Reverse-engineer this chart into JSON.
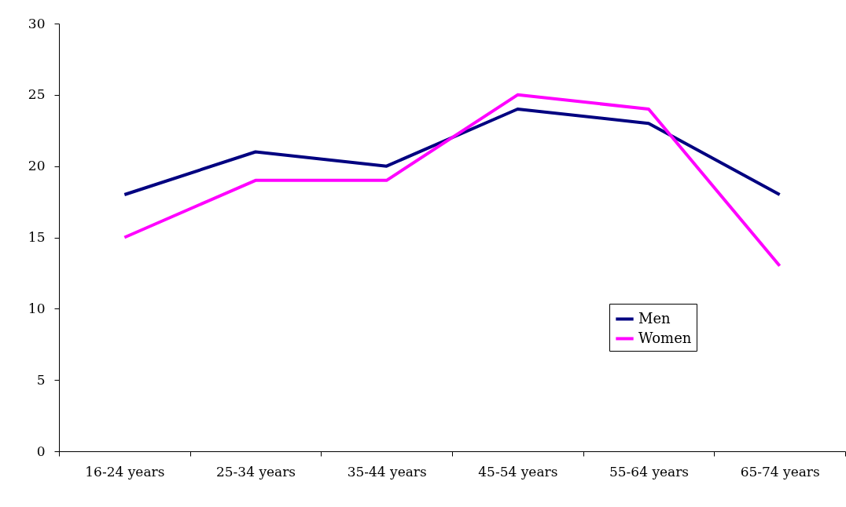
{
  "chart_data": {
    "type": "line",
    "categories": [
      "16-24 years",
      "25-34 years",
      "35-44 years",
      "45-54 years",
      "55-64 years",
      "65-74 years"
    ],
    "series": [
      {
        "name": "Men",
        "color": "#000080",
        "values": [
          18,
          21,
          20,
          24,
          23,
          18
        ]
      },
      {
        "name": "Women",
        "color": "#ff00ff",
        "values": [
          15,
          19,
          19,
          25,
          24,
          13
        ]
      }
    ],
    "ylim": [
      0,
      30
    ],
    "yticks": [
      0,
      5,
      10,
      15,
      20,
      25,
      30
    ],
    "grid": false,
    "legend": "bottom right",
    "marker": "none",
    "line_style": "solid"
  }
}
